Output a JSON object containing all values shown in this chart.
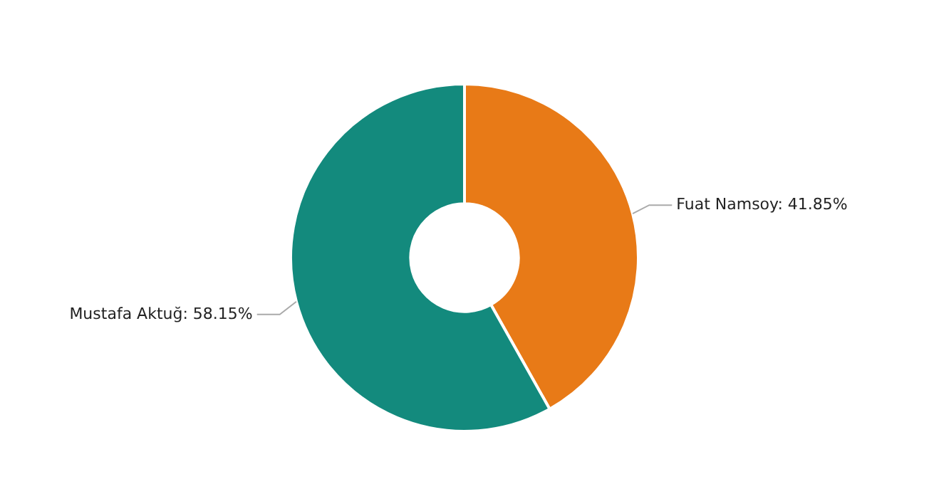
{
  "chart_data": {
    "type": "donut",
    "categories": [
      "Fuat Namsoy",
      "Mustafa Aktuğ"
    ],
    "values": [
      41.85,
      58.15
    ],
    "colors": [
      "#e87a17",
      "#138a7d"
    ],
    "value_labels": [
      "41.85%",
      "58.15%"
    ],
    "legend": false
  }
}
